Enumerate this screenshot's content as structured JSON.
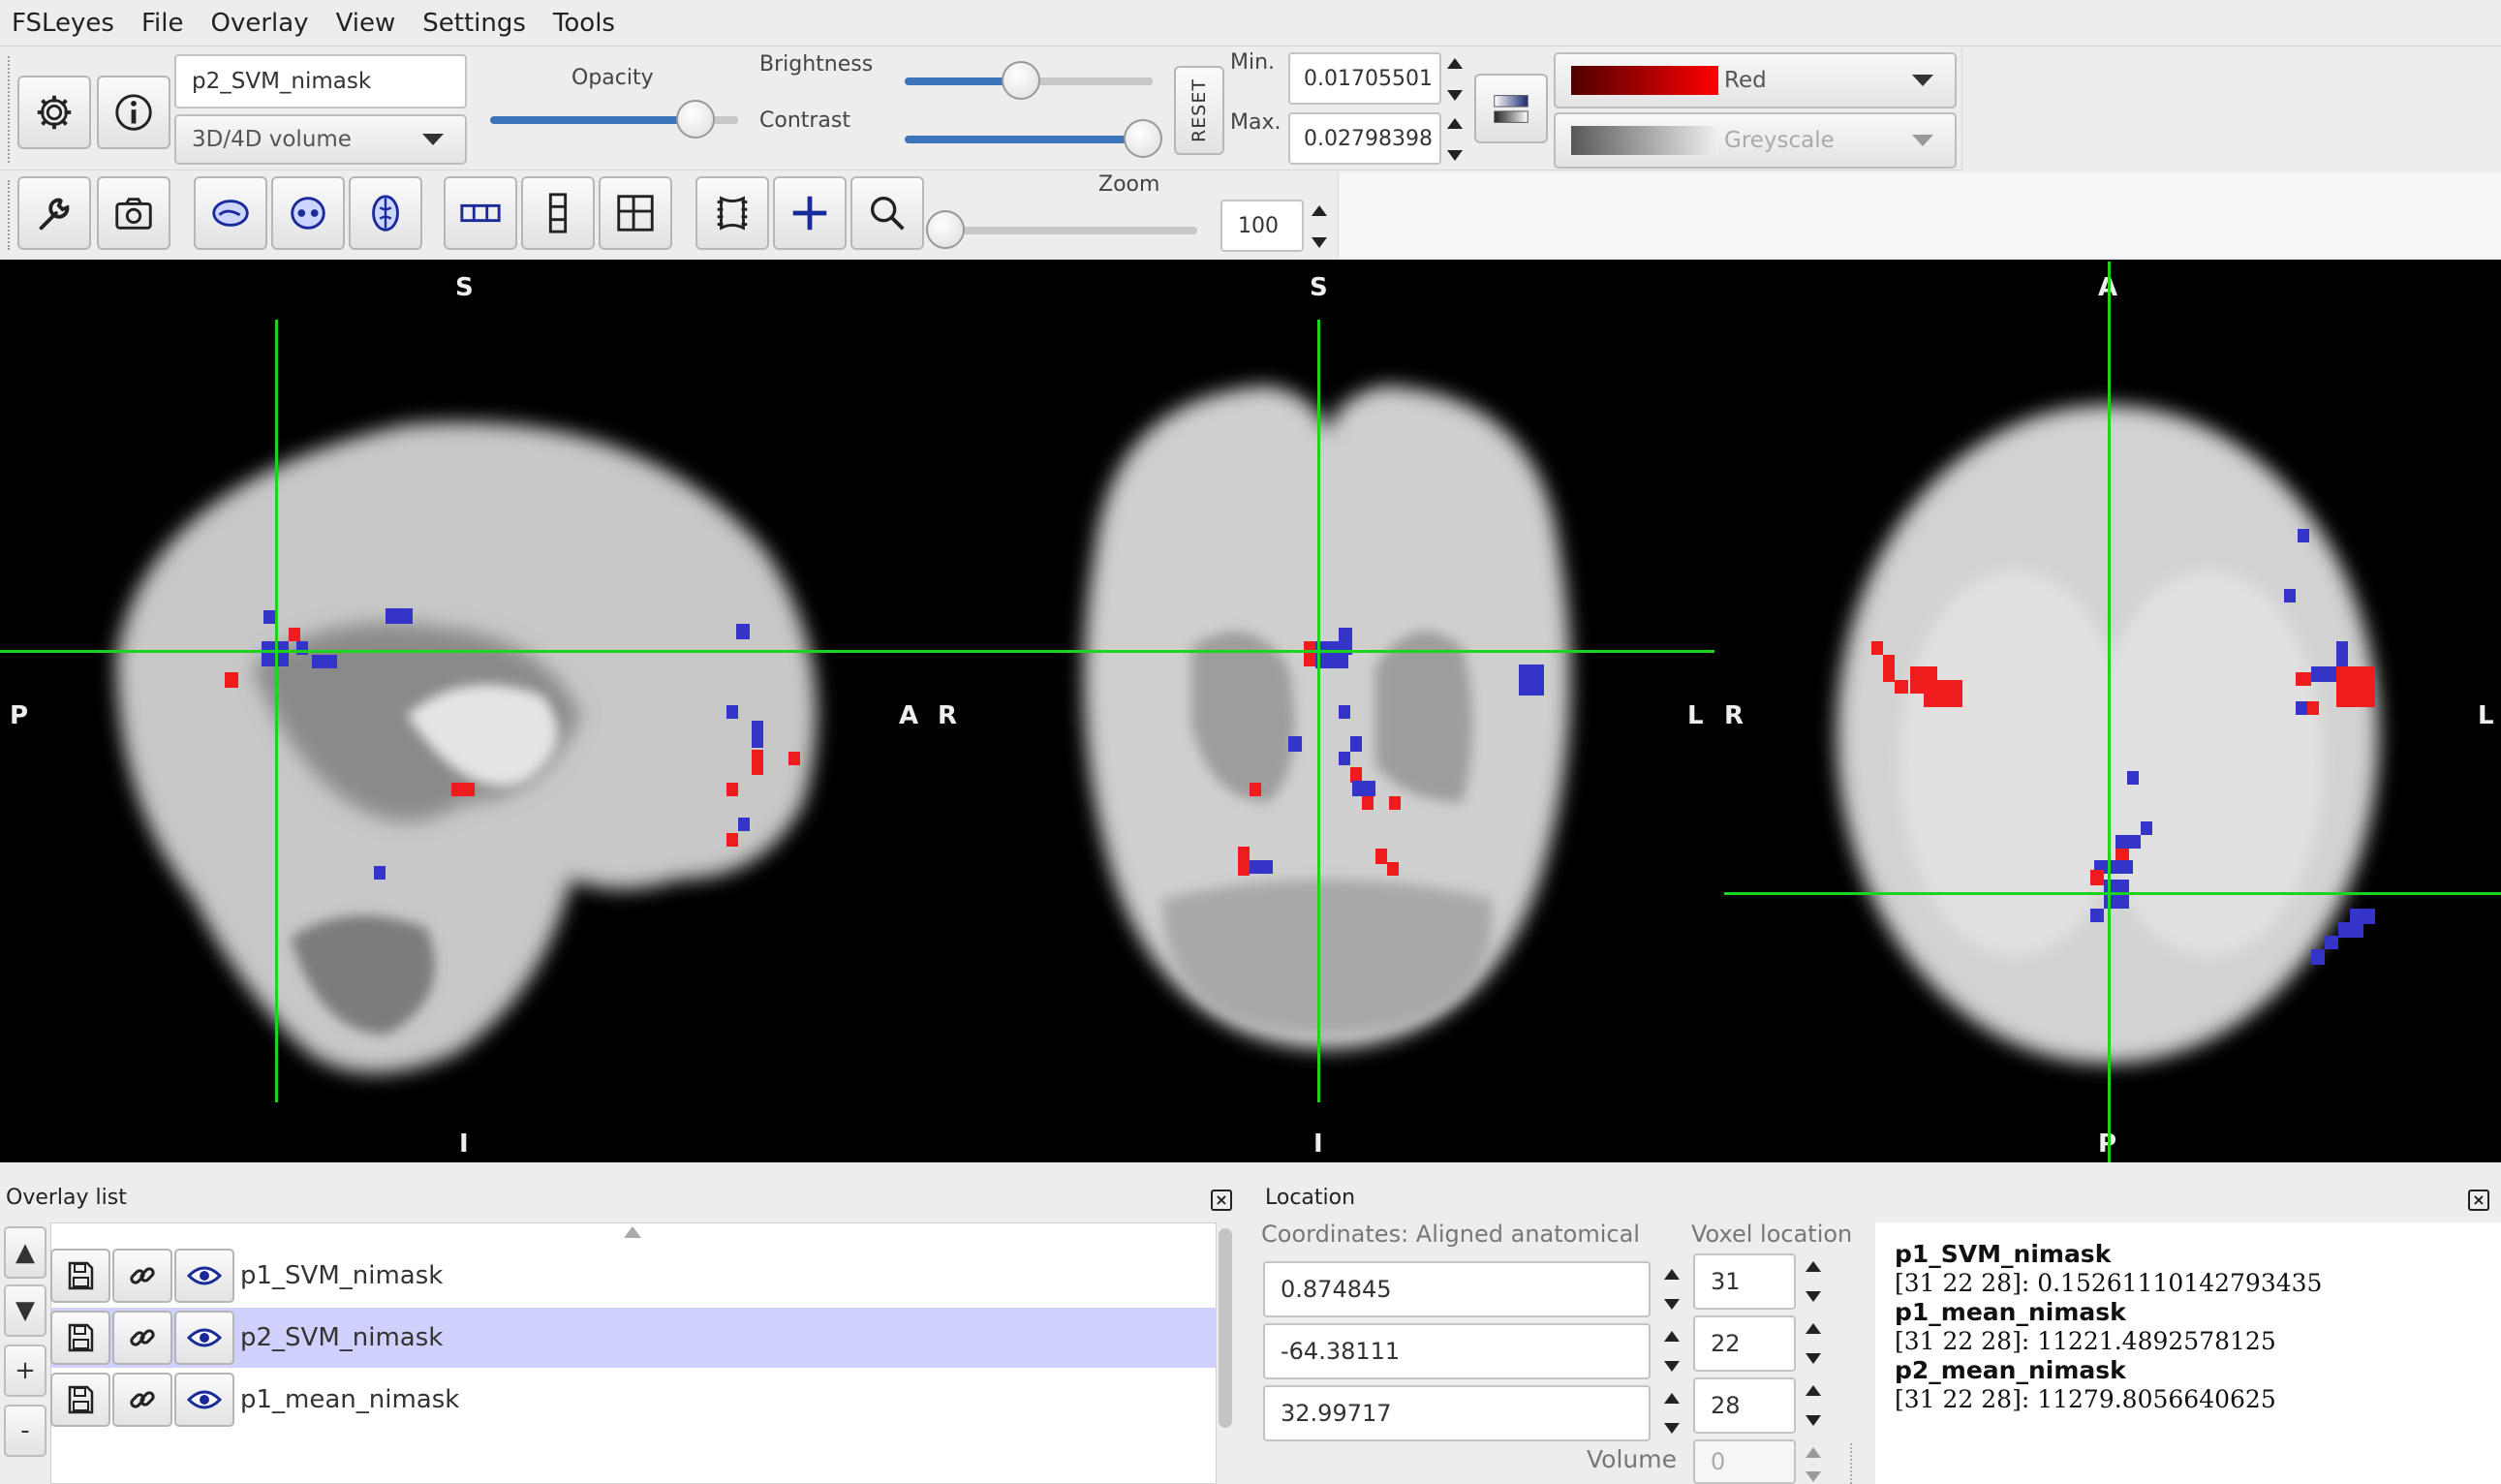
{
  "menu": {
    "items": [
      "FSLeyes",
      "File",
      "Overlay",
      "View",
      "Settings",
      "Tools"
    ]
  },
  "overlay_toolbar": {
    "name_value": "p2_SVM_nimask",
    "type_value": "3D/4D volume",
    "opacity_label": "Opacity",
    "brightness_label": "Brightness",
    "contrast_label": "Contrast",
    "reset_label": "RESET",
    "min_label": "Min.",
    "max_label": "Max.",
    "min_value": "0.01705501",
    "max_value": "0.02798398",
    "colormap": "Red",
    "neg_colormap": "Greyscale",
    "opacity_level": 0.83,
    "brightness_level": 0.47,
    "contrast_level": 1.0
  },
  "ortho_toolbar": {
    "zoom_label": "Zoom",
    "zoom_value": "100",
    "zoom_level": 0.0
  },
  "canvas": {
    "sagittal": {
      "top": "S",
      "bottom": "I",
      "left": "P",
      "right": "A"
    },
    "coronal": {
      "top": "S",
      "bottom": "I",
      "left": "R",
      "right": "L"
    },
    "axial": {
      "top": "A",
      "bottom": "P",
      "left": "R",
      "right": "L"
    },
    "cursor_color": "#1ed31e"
  },
  "overlay_list": {
    "title": "Overlay list",
    "items": [
      {
        "name": "p1_SVM_nimask",
        "selected": false
      },
      {
        "name": "p2_SVM_nimask",
        "selected": true
      },
      {
        "name": "p1_mean_nimask",
        "selected": false
      }
    ],
    "side_buttons": [
      "▲",
      "▼",
      "+",
      "-"
    ]
  },
  "location": {
    "title": "Location",
    "coords_label": "Coordinates: Aligned anatomical",
    "voxel_label": "Voxel location",
    "coords": [
      "0.874845",
      "-64.38111",
      "32.99717"
    ],
    "voxels": [
      "31",
      "22",
      "28"
    ],
    "volume_label": "Volume",
    "volume_value": "0",
    "info": [
      {
        "name": "p1_SVM_nimask",
        "value": "[31 22 28]: 0.15261110142793435"
      },
      {
        "name": "p1_mean_nimask",
        "value": "[31 22 28]: 11221.4892578125"
      },
      {
        "name": "p2_mean_nimask",
        "value": "[31 22 28]: 11279.8056640625"
      }
    ]
  },
  "colors": {
    "accent": "#3a73b8",
    "selected_row": "#cfd0fb",
    "red_voxel": "#ee1c1c",
    "blue_voxel": "#3434c8"
  }
}
